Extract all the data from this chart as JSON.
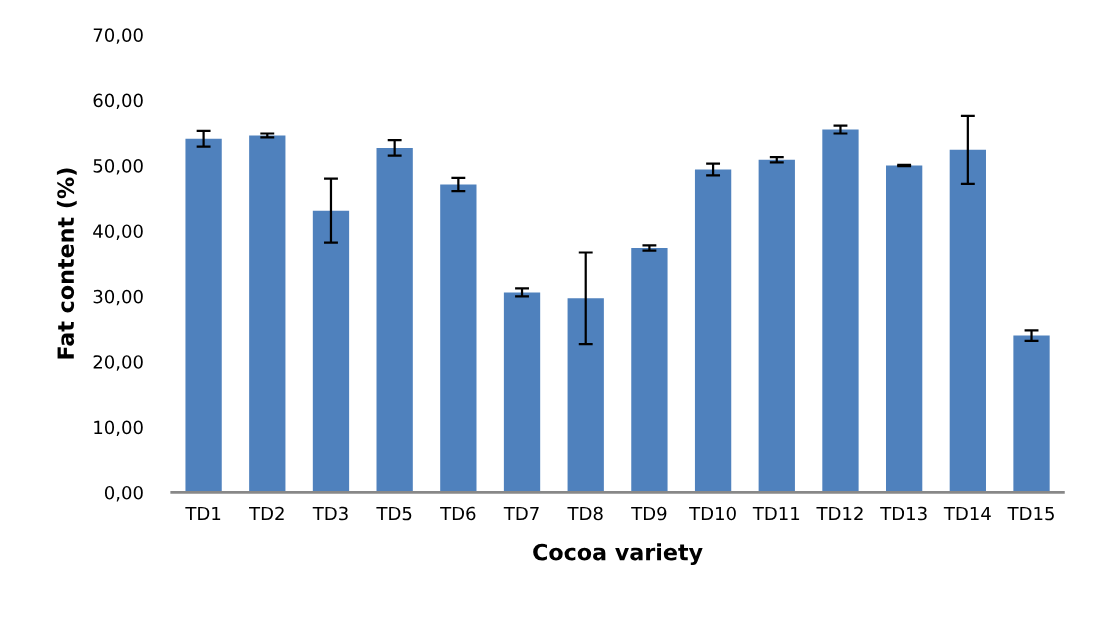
{
  "chart_data": {
    "type": "bar",
    "xlabel": "Cocoa variety",
    "ylabel": "Fat content (%)",
    "categories": [
      "TD1",
      "TD2",
      "TD3",
      "TD5",
      "TD6",
      "TD7",
      "TD8",
      "TD9",
      "TD10",
      "TD11",
      "TD12",
      "TD13",
      "TD14",
      "TD15"
    ],
    "values": [
      54.1,
      54.6,
      43.1,
      52.7,
      47.1,
      30.6,
      29.7,
      37.4,
      49.4,
      50.9,
      55.5,
      50.0,
      52.4,
      24.0
    ],
    "errors": [
      1.2,
      0.3,
      4.9,
      1.2,
      1.0,
      0.6,
      7.0,
      0.4,
      0.9,
      0.4,
      0.6,
      0.1,
      5.2,
      0.8
    ],
    "color": "#4f81bd",
    "ylim": [
      0,
      70
    ],
    "yticks": [
      {
        "value": 0,
        "label": "0,00"
      },
      {
        "value": 10,
        "label": "10,00"
      },
      {
        "value": 20,
        "label": "20,00"
      },
      {
        "value": 30,
        "label": "30,00"
      },
      {
        "value": 40,
        "label": "40,00"
      },
      {
        "value": 50,
        "label": "50,00"
      },
      {
        "value": 60,
        "label": "60,00"
      },
      {
        "value": 70,
        "label": "70,00"
      }
    ],
    "grid": false,
    "legend": false
  }
}
